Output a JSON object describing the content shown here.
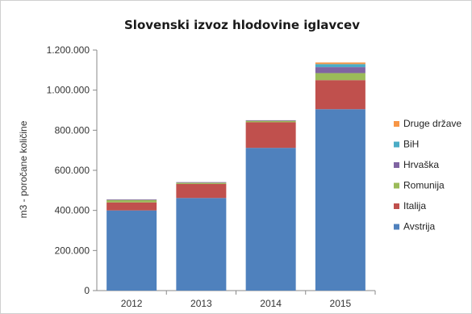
{
  "chart_data": {
    "type": "bar",
    "stacked": true,
    "title": "Slovenski izvoz hlodovine iglavcev",
    "xlabel": "",
    "ylabel": "m3 - poročane količine",
    "categories": [
      "2012",
      "2013",
      "2014",
      "2015"
    ],
    "ylim": [
      0,
      1200000
    ],
    "yticks": [
      0,
      200000,
      400000,
      600000,
      800000,
      1000000,
      1200000
    ],
    "ytick_labels": [
      "0",
      "200.000",
      "400.000",
      "600.000",
      "800.000",
      "1.000.000",
      "1.200.000"
    ],
    "grid": false,
    "legend_position": "right",
    "series": [
      {
        "name": "Avstrija",
        "color": "#4f81bd",
        "values": [
          400000,
          462000,
          712000,
          905000
        ]
      },
      {
        "name": "Italija",
        "color": "#c0504d",
        "values": [
          40000,
          70000,
          128000,
          145000
        ]
      },
      {
        "name": "Romunija",
        "color": "#9bbb59",
        "values": [
          12000,
          6000,
          7000,
          35000
        ]
      },
      {
        "name": "Hrvaška",
        "color": "#8064a2",
        "values": [
          3000,
          3000,
          3000,
          30000
        ]
      },
      {
        "name": "BiH",
        "color": "#4bacc6",
        "values": [
          0,
          0,
          0,
          15000
        ]
      },
      {
        "name": "Druge države",
        "color": "#f79646",
        "values": [
          0,
          0,
          0,
          8000
        ]
      }
    ]
  }
}
